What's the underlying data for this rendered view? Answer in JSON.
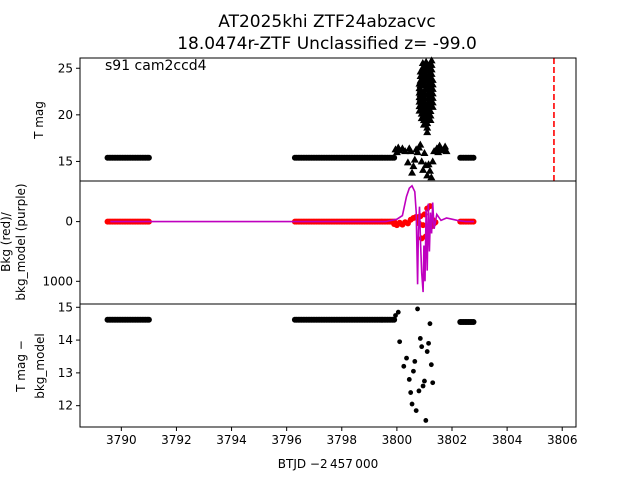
{
  "title_line1": "AT2025khi  ZTF24abzacvc",
  "title_line2": "18.0474r-ZTF Unclassified z= -99.0",
  "annotation": "s91 cam2ccd4",
  "colors": {
    "points": "#000000",
    "bkg": "#ff0000",
    "bkg_model": "#bf00bf",
    "marker_line": "#ff0000"
  },
  "chart_data": [
    {
      "type": "scatter",
      "name": "panel-tmag",
      "ylabel": "T mag",
      "ylim": [
        26.1,
        12.9
      ],
      "yticks": [
        15,
        20,
        25
      ],
      "xlim": [
        3788.5,
        3806.5
      ],
      "vline_x": 3805.7,
      "segments": [
        {
          "x_start": 3789.5,
          "x_end": 3791.0,
          "y": 15.4
        },
        {
          "x_start": 3796.3,
          "x_end": 3799.9,
          "y": 15.4
        }
      ],
      "points": [
        [
          3799.95,
          16.3
        ],
        [
          3800.0,
          16.0
        ],
        [
          3800.05,
          16.5
        ],
        [
          3800.1,
          16.2
        ],
        [
          3800.2,
          16.4
        ],
        [
          3800.3,
          16.1
        ],
        [
          3800.4,
          14.9
        ],
        [
          3800.45,
          16.4
        ],
        [
          3800.5,
          16.1
        ],
        [
          3800.55,
          13.8
        ],
        [
          3800.6,
          14.5
        ],
        [
          3800.65,
          15.2
        ],
        [
          3800.7,
          16.3
        ],
        [
          3800.75,
          16.0
        ],
        [
          3800.8,
          16.5
        ],
        [
          3800.85,
          16.8
        ],
        [
          3800.9,
          15.0
        ],
        [
          3800.95,
          14.1
        ],
        [
          3801.0,
          15.9
        ],
        [
          3801.05,
          14.6
        ],
        [
          3801.1,
          13.5
        ],
        [
          3801.15,
          14.7
        ],
        [
          3801.2,
          14.0
        ],
        [
          3801.25,
          13.3
        ],
        [
          3801.3,
          15.0
        ],
        [
          3801.35,
          16.1
        ],
        [
          3801.45,
          16.4
        ],
        [
          3801.5,
          16.0
        ],
        [
          3801.55,
          16.7
        ],
        [
          3801.6,
          16.3
        ],
        [
          3801.7,
          16.2
        ],
        [
          3801.75,
          16.6
        ],
        [
          3801.8,
          16.1
        ]
      ],
      "deep_points": [
        [
          3800.82,
          21.9
        ],
        [
          3800.86,
          23.2
        ],
        [
          3800.9,
          21.1
        ],
        [
          3800.94,
          24.6
        ],
        [
          3800.98,
          20.4
        ],
        [
          3801.02,
          22.7
        ],
        [
          3801.06,
          25.2
        ],
        [
          3801.1,
          19.6
        ],
        [
          3801.14,
          21.8
        ],
        [
          3801.18,
          23.9
        ],
        [
          3801.22,
          20.9
        ],
        [
          3801.26,
          24.4
        ],
        [
          3801.3,
          22.3
        ]
      ],
      "post_segment": {
        "x_start": 3802.3,
        "x_end": 3802.8,
        "y": 15.4
      }
    },
    {
      "type": "line",
      "name": "panel-bkg",
      "ylabel": "Bkg (red)/ bkg_model (purple)",
      "ylim": [
        -680,
        1380
      ],
      "yticks": [
        0,
        1000
      ],
      "xlim": [
        3788.5,
        3806.5
      ],
      "bkg_segments": [
        {
          "x_start": 3789.5,
          "x_end": 3791.0,
          "y": 0
        },
        {
          "x_start": 3796.3,
          "x_end": 3799.9,
          "y": 0
        },
        {
          "x_start": 3802.3,
          "x_end": 3802.8,
          "y": 0
        }
      ],
      "bkg_points": [
        [
          3799.9,
          40
        ],
        [
          3800.0,
          60
        ],
        [
          3800.1,
          20
        ],
        [
          3800.2,
          50
        ],
        [
          3800.3,
          10
        ],
        [
          3800.4,
          30
        ],
        [
          3800.5,
          -30
        ],
        [
          3800.6,
          -60
        ],
        [
          3800.7,
          -80
        ],
        [
          3800.75,
          -60
        ],
        [
          3800.8,
          30
        ],
        [
          3800.85,
          -90
        ],
        [
          3800.9,
          280
        ],
        [
          3800.95,
          60
        ],
        [
          3801.0,
          -120
        ],
        [
          3801.05,
          250
        ],
        [
          3801.1,
          -220
        ],
        [
          3801.15,
          120
        ],
        [
          3801.2,
          -260
        ],
        [
          3801.25,
          80
        ],
        [
          3801.3,
          -30
        ],
        [
          3801.35,
          30
        ],
        [
          3801.4,
          10
        ]
      ],
      "bkg_model_series": [
        [
          3789.6,
          0
        ],
        [
          3796.2,
          0
        ],
        [
          3799.6,
          0
        ],
        [
          3799.8,
          -20
        ],
        [
          3800.0,
          -40
        ],
        [
          3800.2,
          -100
        ],
        [
          3800.35,
          -420
        ],
        [
          3800.45,
          -560
        ],
        [
          3800.55,
          -600
        ],
        [
          3800.65,
          -500
        ],
        [
          3800.7,
          -160
        ],
        [
          3800.75,
          1050
        ],
        [
          3800.78,
          150
        ],
        [
          3800.82,
          -250
        ],
        [
          3800.86,
          380
        ],
        [
          3800.9,
          860
        ],
        [
          3800.95,
          1180
        ],
        [
          3800.98,
          400
        ],
        [
          3801.02,
          1000
        ],
        [
          3801.06,
          -200
        ],
        [
          3801.1,
          820
        ],
        [
          3801.14,
          -300
        ],
        [
          3801.18,
          500
        ],
        [
          3801.22,
          -150
        ],
        [
          3801.26,
          200
        ],
        [
          3801.3,
          -320
        ],
        [
          3801.35,
          120
        ],
        [
          3801.45,
          -120
        ],
        [
          3801.6,
          -20
        ],
        [
          3801.8,
          -60
        ],
        [
          3802.0,
          -40
        ],
        [
          3802.2,
          -20
        ],
        [
          3802.5,
          0
        ],
        [
          3802.8,
          0
        ]
      ]
    },
    {
      "type": "scatter",
      "name": "panel-tmag-minus-model",
      "ylabel": "T mag − bkg_model",
      "ylim": [
        15.1,
        11.35
      ],
      "yticks": [
        12,
        13,
        14,
        15
      ],
      "xlim": [
        3788.5,
        3806.5
      ],
      "xticks": [
        3790,
        3792,
        3794,
        3796,
        3798,
        3800,
        3802,
        3804,
        3806
      ],
      "xlabel": "BTJD −2 457 000",
      "segments": [
        {
          "x_start": 3789.5,
          "x_end": 3791.0,
          "y": 14.62
        },
        {
          "x_start": 3796.3,
          "x_end": 3799.9,
          "y": 14.62
        },
        {
          "x_start": 3802.3,
          "x_end": 3802.8,
          "y": 14.55
        }
      ],
      "points": [
        [
          3799.95,
          14.75
        ],
        [
          3800.05,
          14.85
        ],
        [
          3800.1,
          13.95
        ],
        [
          3800.25,
          13.2
        ],
        [
          3800.35,
          13.45
        ],
        [
          3800.45,
          12.8
        ],
        [
          3800.5,
          12.4
        ],
        [
          3800.55,
          12.05
        ],
        [
          3800.6,
          13.05
        ],
        [
          3800.65,
          13.35
        ],
        [
          3800.7,
          11.85
        ],
        [
          3800.75,
          14.95
        ],
        [
          3800.8,
          12.45
        ],
        [
          3800.85,
          14.05
        ],
        [
          3800.9,
          13.8
        ],
        [
          3800.95,
          12.6
        ],
        [
          3801.0,
          12.75
        ],
        [
          3801.05,
          11.55
        ],
        [
          3801.1,
          13.65
        ],
        [
          3801.15,
          13.9
        ],
        [
          3801.2,
          14.5
        ],
        [
          3801.25,
          13.25
        ],
        [
          3801.3,
          12.7
        ]
      ]
    }
  ]
}
